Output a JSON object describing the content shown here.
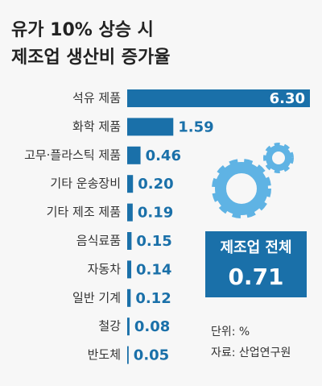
{
  "chart_data": {
    "type": "bar",
    "title": [
      "유가 10% 상승 시",
      "제조업 생산비 증가율"
    ],
    "categories": [
      "석유 제품",
      "화학 제품",
      "고무·플라스틱 제품",
      "기타 운송장비",
      "기타 제조 제품",
      "음식료품",
      "자동차",
      "일반 기계",
      "철강",
      "반도체"
    ],
    "values": [
      6.3,
      1.59,
      0.46,
      0.2,
      0.19,
      0.15,
      0.14,
      0.12,
      0.08,
      0.05
    ],
    "value_labels": [
      "6.30",
      "1.59",
      "0.46",
      "0.20",
      "0.19",
      "0.15",
      "0.14",
      "0.12",
      "0.08",
      "0.05"
    ],
    "color": "#1a70a9",
    "total": {
      "label": "제조업 전체",
      "value": 0.71
    },
    "notes": [
      "단위: %",
      "자료: 산업연구원"
    ]
  }
}
